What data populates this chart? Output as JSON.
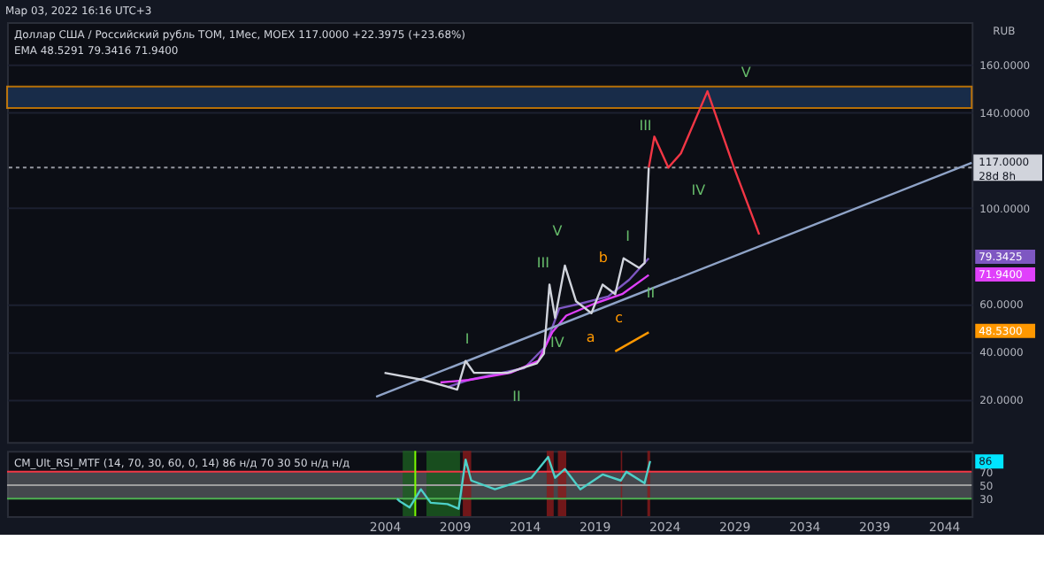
{
  "chart_data": [
    {
      "type": "line",
      "title": "Доллар США / Российский рубль TOM, 1Мес, MOEX  117.0000  +22.3975 (+23.68%)",
      "subtitle": "EMA 48.5291 79.3416 71.9400",
      "xlim": [
        1977,
        2046
      ],
      "ylim": [
        2,
        178
      ],
      "yticks": [
        {
          "value": 20,
          "label": "20.0000"
        },
        {
          "value": 40,
          "label": "40.0000"
        },
        {
          "value": 60,
          "label": "60.0000"
        },
        {
          "value": 100,
          "label": "100.0000"
        },
        {
          "value": 140,
          "label": "140.0000"
        },
        {
          "value": 160,
          "label": "160.0000"
        }
      ],
      "tick_labels": "y",
      "grid": true,
      "series": [
        {
          "color": "#7e57c2",
          "x": [
            2008.5,
            2010,
            2014,
            2015.5,
            2016.5,
            2018,
            2020,
            2021.5,
            2022.9
          ],
          "values": [
            25,
            28,
            33,
            42,
            58,
            60,
            63,
            70,
            79
          ]
        },
        {
          "color": "#e040fb",
          "x": [
            2008,
            2010,
            2013,
            2015,
            2016,
            2017,
            2019,
            2021,
            2022.9
          ],
          "values": [
            27,
            28,
            31,
            36,
            48,
            55,
            60,
            64,
            72
          ]
        },
        {
          "color": "#f23645",
          "x": [
            2022.9,
            2023.3,
            2024.3,
            2025.2,
            2027.1,
            2029.0,
            2030.8
          ],
          "values": [
            117,
            130,
            117,
            123,
            149,
            117,
            89
          ]
        },
        {
          "color": "#8fa3c7",
          "x": [
            2003.4,
            2046
          ],
          "values": [
            21,
            119
          ]
        },
        {
          "color": "#ff9800",
          "x": [
            2020.5,
            2022.9
          ],
          "values": [
            40,
            48
          ]
        },
        {
          "color": "#d1d4dc",
          "x": [
            2004.0,
            2006.8,
            2009.2,
            2009.8,
            2010.4,
            2012.8,
            2014.9,
            2015.4,
            2015.8,
            2016.2,
            2016.9,
            2017.7,
            2018.8,
            2019.6,
            2020.5,
            2021.1,
            2022.2,
            2022.6,
            2022.9
          ],
          "values": [
            31,
            28,
            24,
            36,
            31,
            31,
            35,
            39,
            68,
            54,
            76,
            61,
            56,
            68,
            64,
            79,
            75,
            77,
            117
          ]
        }
      ],
      "ref_lines": [
        {
          "axis": "y",
          "value": 117,
          "label": "117.0000\n28d 8h",
          "color": "#9598a1",
          "line_style": "dotted"
        }
      ],
      "bands": [
        {
          "axis": "y",
          "from": 142,
          "to": 151,
          "color": "#1e3a5f"
        }
      ],
      "annotations": [
        "Мар 03, 2022 16:16 UTC+3",
        "RUB",
        "I",
        "II",
        "III",
        "V",
        "IV",
        "a",
        "b",
        "c",
        "I",
        "II",
        "III",
        "IV",
        "V",
        "79.3425",
        "71.9400",
        "48.5300"
      ]
    },
    {
      "type": "line",
      "title": "CM_Ult_RSI_MTF (14, 70, 30, 60, 0, 14)  86  н/д  70  30  50  н/д  н/д",
      "xlim": [
        1977,
        2046
      ],
      "xticks": [
        2004,
        2009,
        2014,
        2019,
        2024,
        2029,
        2034,
        2039,
        2044
      ],
      "ylim": [
        4,
        101
      ],
      "yticks": [
        30,
        50,
        70
      ],
      "grid": false,
      "series": [
        {
          "color": "#4dd0c8",
          "x": [
            2004.9,
            2005.1,
            2005.8,
            2006.6,
            2007.3,
            2008.5,
            2009.3,
            2009.8,
            2010.2,
            2011.9,
            2014.5,
            2015.7,
            2016.2,
            2016.9,
            2018.0,
            2019.6,
            2020.9,
            2021.3,
            2022.6,
            2023.0
          ],
          "values": [
            30,
            26,
            17,
            44,
            24,
            22,
            15,
            88,
            57,
            44,
            61,
            92,
            61,
            74,
            44,
            66,
            57,
            70,
            53,
            86
          ]
        }
      ],
      "ref_lines": [
        {
          "axis": "y",
          "value": 70,
          "color": "#f23645"
        },
        {
          "axis": "y",
          "value": 50,
          "color": "#9e9e9e"
        },
        {
          "axis": "y",
          "value": 30,
          "color": "#4caf50"
        },
        {
          "axis": "x",
          "value": 2006.2,
          "color": "#7cfc00"
        }
      ],
      "bands": [
        {
          "axis": "y",
          "from": 30,
          "to": 70,
          "color": "#5d6065"
        },
        {
          "axis": "x",
          "from": 2005.3,
          "to": 2006.2,
          "color": "#1b5e20"
        },
        {
          "axis": "x",
          "from": 2007.0,
          "to": 2009.4,
          "color": "#1b5e20"
        },
        {
          "axis": "x",
          "from": 2009.6,
          "to": 2010.2,
          "color": "#8b1a1a"
        },
        {
          "axis": "x",
          "from": 2015.6,
          "to": 2016.1,
          "color": "#8b1a1a"
        },
        {
          "axis": "x",
          "from": 2016.4,
          "to": 2017.0,
          "color": "#8b1a1a"
        },
        {
          "axis": "x",
          "from": 2020.9,
          "to": 2021.0,
          "color": "#8b1a1a"
        },
        {
          "axis": "x",
          "from": 2022.8,
          "to": 2023.0,
          "color": "#8b1a1a"
        }
      ],
      "annotations": [
        "86"
      ]
    }
  ]
}
